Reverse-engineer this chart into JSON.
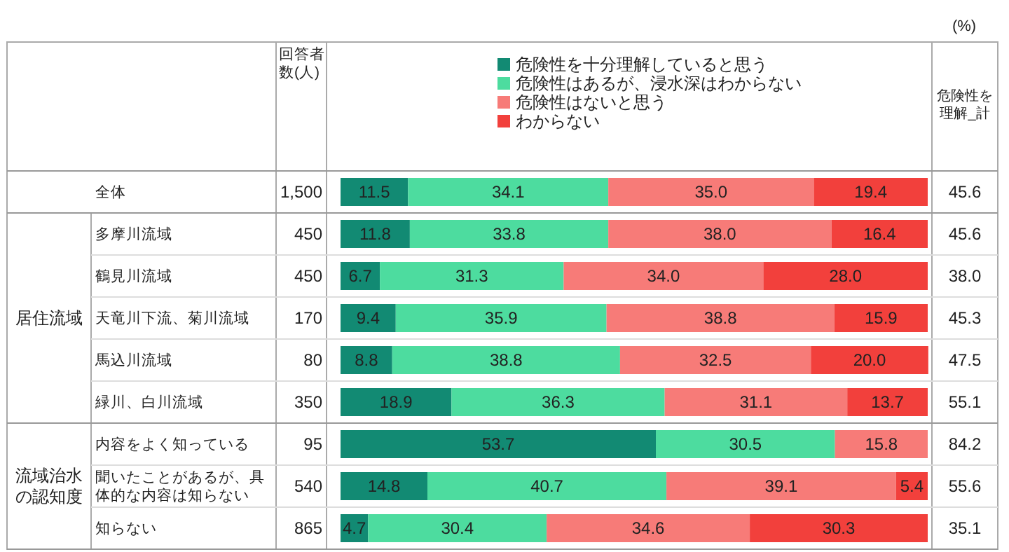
{
  "chart_data": {
    "type": "bar",
    "orientation": "horizontal",
    "stacked": true,
    "legend": "top",
    "xlim": [
      0,
      100
    ],
    "categories": [
      "全体",
      "多摩川流域",
      "鶴見川流域",
      "天竜川下流、菊川流域",
      "馬込川流域",
      "緑川、白川流域",
      "内容をよく知っている",
      "聞いたことがあるが、具体的な内容は知らない",
      "知らない"
    ],
    "series": [
      {
        "name": "危険性を十分理解していると思う",
        "color": "#128a73",
        "values": [
          11.5,
          11.8,
          6.7,
          9.4,
          8.8,
          18.9,
          53.7,
          14.8,
          4.7
        ],
        "value_labels": [
          "11.5",
          "11.8",
          "6.7",
          "9.4",
          "8.8",
          "18.9",
          "53.7",
          "14.8",
          "4.7"
        ]
      },
      {
        "name": "危険性はあるが、浸水深はわからない",
        "color": "#4ddc9f",
        "values": [
          34.1,
          33.8,
          31.3,
          35.9,
          38.8,
          36.3,
          30.5,
          40.7,
          30.4
        ],
        "value_labels": [
          "34.1",
          "33.8",
          "31.3",
          "35.9",
          "38.8",
          "36.3",
          "30.5",
          "40.7",
          "30.4"
        ]
      },
      {
        "name": "危険性はないと思う",
        "color": "#f77b78",
        "values": [
          35.0,
          38.0,
          34.0,
          38.8,
          32.5,
          31.1,
          15.8,
          39.1,
          34.6
        ],
        "value_labels": [
          "35.0",
          "38.0",
          "34.0",
          "38.8",
          "32.5",
          "31.1",
          "15.8",
          "39.1",
          "34.6"
        ]
      },
      {
        "name": "わからない",
        "color": "#f2403c",
        "values": [
          19.4,
          16.4,
          28.0,
          15.9,
          20.0,
          13.7,
          null,
          5.4,
          30.3
        ],
        "value_labels": [
          "19.4",
          "16.4",
          "28.0",
          "15.9",
          "20.0",
          "13.7",
          null,
          "5.4",
          "30.3"
        ]
      }
    ],
    "annotations": [
      "(%)",
      "回答者数(人)",
      "危険性を理解_計",
      "居住流域",
      "流域治水の認知度",
      "1,500",
      "450",
      "450",
      "170",
      "80",
      "350",
      "95",
      "540",
      "865",
      "45.6",
      "45.6",
      "38.0",
      "45.3",
      "47.5",
      "55.1",
      "84.2",
      "55.6",
      "35.1"
    ]
  }
}
